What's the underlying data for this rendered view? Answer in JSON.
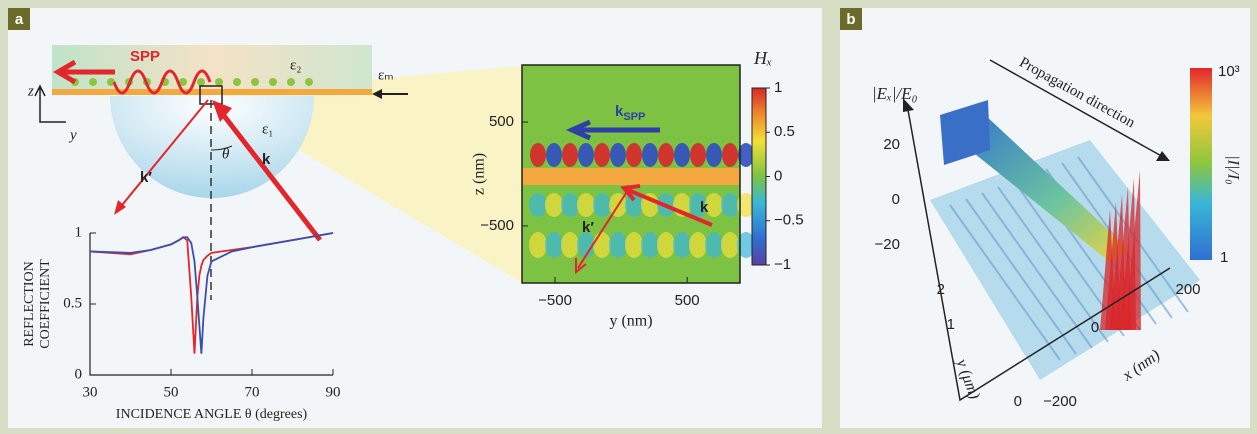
{
  "panel_labels": [
    "a",
    "b"
  ],
  "schematic": {
    "spp": "SPP",
    "eps2": "ε₂",
    "epsm": "εₘ",
    "eps1": "ε₁",
    "z": "z",
    "y": "y",
    "theta": "θ",
    "k_reflected": "k′",
    "k_incident": "k"
  },
  "chart_data": [
    {
      "type": "line",
      "x": [
        30,
        40,
        45,
        50,
        52,
        53,
        54,
        55,
        55.8,
        56.5,
        57,
        57.5,
        58,
        59,
        60,
        65,
        70,
        80,
        90
      ],
      "series": [
        {
          "color": "#e2262b",
          "values": [
            0.87,
            0.85,
            0.88,
            0.92,
            0.95,
            0.97,
            0.95,
            0.55,
            0.15,
            0.55,
            0.7,
            0.77,
            0.81,
            0.84,
            0.86,
            0.88,
            0.9,
            0.95,
            1.0
          ]
        },
        {
          "color": "#3a4fb0",
          "values": [
            0.87,
            0.86,
            0.88,
            0.92,
            0.95,
            0.97,
            0.97,
            0.93,
            0.8,
            0.55,
            0.35,
            0.15,
            0.4,
            0.7,
            0.8,
            0.87,
            0.9,
            0.95,
            1.0
          ]
        }
      ],
      "xlim": [
        30,
        90
      ],
      "xticks": [
        30,
        50,
        70,
        90
      ],
      "ylim": [
        0,
        1
      ],
      "yticks": [
        0,
        0.5,
        1
      ],
      "xlabel": "INCIDENCE ANGLE θ (degrees)",
      "ylabel": [
        "REFLECTION",
        "COEFFICIENT"
      ]
    },
    {
      "type": "heatmap",
      "xlabel": "y (nm)",
      "ylabel": "z (nm)",
      "xlim": [
        -750,
        900
      ],
      "xticks": [
        {
          "value": -500,
          "label": "−500"
        },
        500
      ],
      "ylim": [
        -1050,
        1050
      ],
      "yticks": [
        500,
        {
          "value": -500,
          "label": "−500"
        }
      ],
      "annotations": {
        "k_spp": {
          "main": "k",
          "sub": "SPP"
        },
        "k_reflected": "k′",
        "k_incident": "k"
      },
      "colorbar": {
        "title": "Hₓ",
        "lim": [
          -1,
          1
        ],
        "ticks": [
          1,
          0.5,
          0,
          {
            "value": -0.5,
            "label": "−0.5"
          },
          {
            "value": -1,
            "label": "−1"
          }
        ]
      }
    }
  ],
  "panel_b": {
    "ylabel": "|Eₓ|/E₀",
    "field_ticks": [
      "20",
      "0",
      "−20"
    ],
    "y_axis_label": "y (μm)",
    "y_ticks": [
      "2",
      "1",
      "0"
    ],
    "x_axis_label": "x (nm)",
    "x_ticks": [
      "200",
      "0",
      "−200"
    ],
    "propagation": "Propagation direction",
    "colorbar_title": "|I|/I₀",
    "colorbar_ticks": [
      "10³",
      "1"
    ]
  }
}
